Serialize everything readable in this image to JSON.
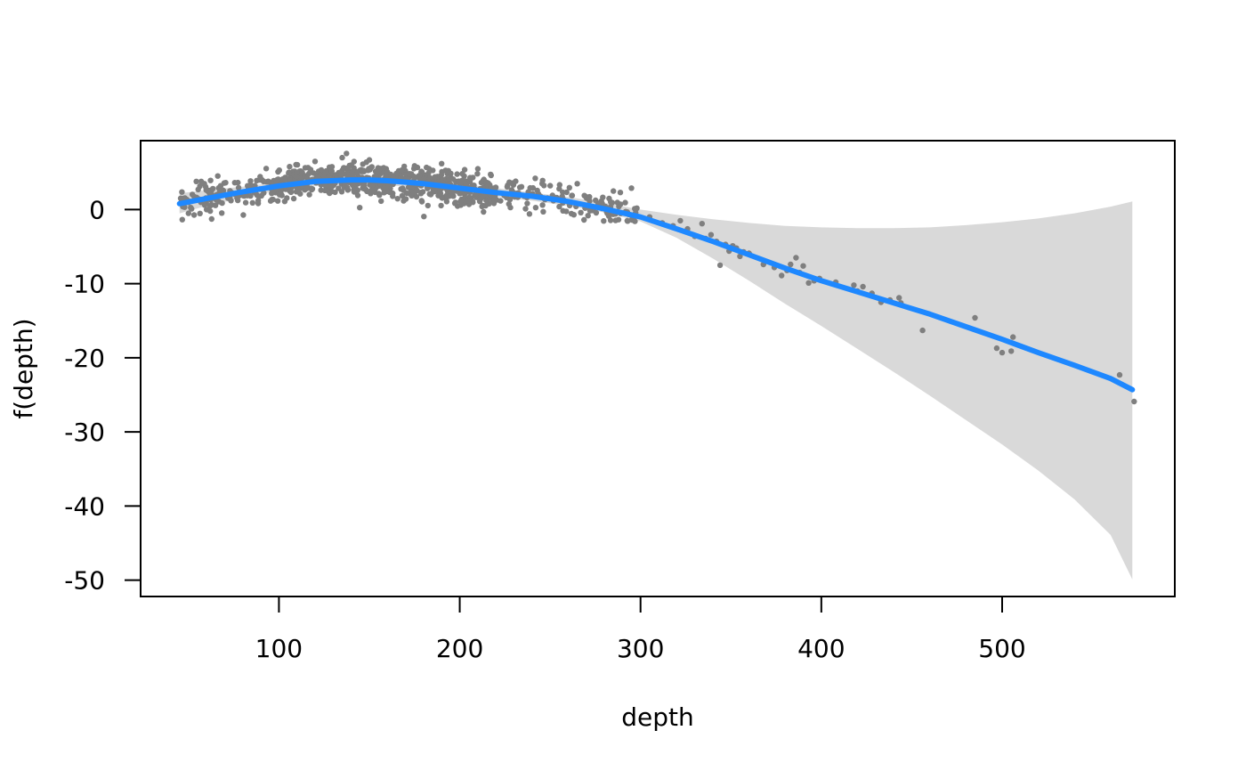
{
  "chart_data": {
    "type": "scatter",
    "title": "",
    "xlabel": "depth",
    "ylabel": "f(depth)",
    "xlim": [
      23.5,
      595.5
    ],
    "ylim": [
      -52.2,
      9.3
    ],
    "x_ticks": [
      100,
      200,
      300,
      400,
      500
    ],
    "x_tick_labels": [
      "100",
      "200",
      "300",
      "400",
      "500"
    ],
    "y_ticks": [
      0,
      -10,
      -20,
      -30,
      -40,
      -50
    ],
    "y_tick_labels": [
      "0",
      "-10",
      "-20",
      "-30",
      "-40",
      "-50"
    ],
    "grid": false,
    "legend": "none",
    "series": [
      {
        "kind": "smooth_line",
        "color": "#1E88FF",
        "x": [
          45,
          60,
          80,
          100,
          120,
          140,
          150,
          160,
          180,
          200,
          220,
          240,
          260,
          280,
          300,
          320,
          340,
          360,
          380,
          400,
          420,
          440,
          460,
          480,
          500,
          520,
          540,
          560,
          572
        ],
        "y": [
          0.8,
          1.5,
          2.4,
          3.2,
          3.8,
          4.0,
          4.0,
          3.9,
          3.5,
          2.9,
          2.3,
          1.8,
          1.1,
          0.1,
          -1.0,
          -2.6,
          -4.3,
          -6.1,
          -7.9,
          -9.6,
          -11.1,
          -12.6,
          -14.1,
          -15.8,
          -17.5,
          -19.3,
          -21.0,
          -22.8,
          -24.3
        ]
      },
      {
        "kind": "confidence_band",
        "color": "#D9D9D9",
        "x": [
          45,
          60,
          80,
          100,
          120,
          140,
          160,
          180,
          200,
          220,
          240,
          260,
          280,
          300,
          320,
          340,
          360,
          380,
          400,
          420,
          440,
          460,
          480,
          500,
          520,
          540,
          560,
          572
        ],
        "upper": [
          2.2,
          2.6,
          3.1,
          3.7,
          4.3,
          4.6,
          4.5,
          4.1,
          3.5,
          2.9,
          2.3,
          1.7,
          0.9,
          0.0,
          -0.7,
          -1.3,
          -1.8,
          -2.2,
          -2.4,
          -2.5,
          -2.5,
          -2.4,
          -2.1,
          -1.7,
          -1.2,
          -0.5,
          0.4,
          1.1
        ],
        "lower": [
          -0.5,
          0.5,
          1.6,
          2.6,
          3.2,
          3.4,
          3.3,
          2.9,
          2.3,
          1.7,
          1.2,
          0.5,
          -0.4,
          -1.6,
          -3.8,
          -6.6,
          -9.6,
          -12.7,
          -15.7,
          -18.8,
          -21.9,
          -25.1,
          -28.4,
          -31.7,
          -35.2,
          -39.1,
          -43.9,
          -49.9
        ]
      },
      {
        "kind": "points",
        "color": "#7F7F7F",
        "dense_region": {
          "x_min": 45,
          "x_max": 300,
          "count": 900,
          "spread": 1.1
        },
        "x": [
          50,
          57,
          60,
          62,
          120,
          135,
          140,
          150,
          175,
          190,
          210,
          255,
          265,
          285,
          295,
          298,
          305,
          312,
          318,
          322,
          326,
          330,
          334,
          336,
          339,
          342,
          344,
          347,
          349,
          351,
          353,
          355,
          357,
          360,
          368,
          374,
          378,
          381,
          383,
          386,
          388,
          390,
          393,
          396,
          399,
          408,
          418,
          420,
          423,
          428,
          433,
          438,
          443,
          444,
          456,
          485,
          497,
          500,
          505,
          506,
          565,
          573
        ],
        "y": [
          -0.5,
          3.8,
          0.0,
          -0.2,
          6.5,
          7.0,
          6.0,
          6.7,
          5.9,
          6.2,
          5.5,
          2.8,
          3.5,
          2.5,
          2.9,
          0.2,
          -1.0,
          -1.8,
          -2.2,
          -1.5,
          -2.6,
          -3.6,
          -1.9,
          -3.9,
          -3.4,
          -4.3,
          -7.5,
          -4.7,
          -5.6,
          -4.9,
          -5.2,
          -6.3,
          -5.7,
          -5.9,
          -7.4,
          -7.8,
          -8.9,
          -8.2,
          -7.4,
          -6.5,
          -8.5,
          -7.6,
          -9.9,
          -9.6,
          -9.3,
          -9.8,
          -10.2,
          -11.0,
          -10.4,
          -11.3,
          -12.5,
          -12.2,
          -11.9,
          -12.6,
          -16.3,
          -14.6,
          -18.7,
          -19.3,
          -19.1,
          -17.2,
          -22.3,
          -25.9
        ]
      }
    ]
  }
}
